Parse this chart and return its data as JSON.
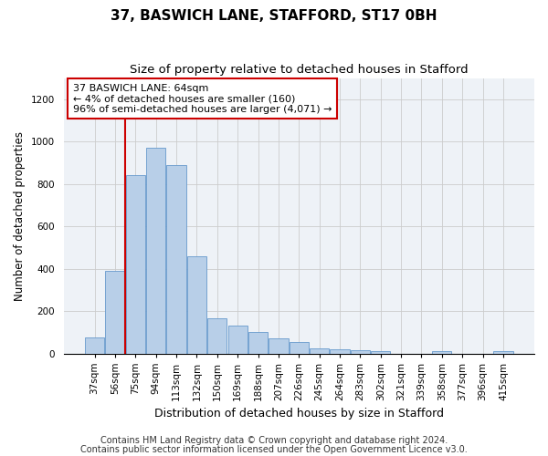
{
  "title": "37, BASWICH LANE, STAFFORD, ST17 0BH",
  "subtitle": "Size of property relative to detached houses in Stafford",
  "xlabel": "Distribution of detached houses by size in Stafford",
  "ylabel": "Number of detached properties",
  "categories": [
    "37sqm",
    "56sqm",
    "75sqm",
    "94sqm",
    "113sqm",
    "132sqm",
    "150sqm",
    "169sqm",
    "188sqm",
    "207sqm",
    "226sqm",
    "245sqm",
    "264sqm",
    "283sqm",
    "302sqm",
    "321sqm",
    "339sqm",
    "358sqm",
    "377sqm",
    "396sqm",
    "415sqm"
  ],
  "values": [
    75,
    390,
    840,
    970,
    890,
    460,
    165,
    130,
    100,
    70,
    55,
    25,
    20,
    15,
    10,
    0,
    0,
    10,
    0,
    0,
    10
  ],
  "bar_color": "#b8cfe8",
  "bar_edge_color": "#6699cc",
  "vline_x_index": 1.5,
  "vline_color": "#cc0000",
  "annotation_text": "37 BASWICH LANE: 64sqm\n← 4% of detached houses are smaller (160)\n96% of semi-detached houses are larger (4,071) →",
  "annotation_box_color": "#ffffff",
  "annotation_box_edge": "#cc0000",
  "footnote1": "Contains HM Land Registry data © Crown copyright and database right 2024.",
  "footnote2": "Contains public sector information licensed under the Open Government Licence v3.0.",
  "ylim": [
    0,
    1300
  ],
  "yticks": [
    0,
    200,
    400,
    600,
    800,
    1000,
    1200
  ],
  "title_fontsize": 11,
  "subtitle_fontsize": 9.5,
  "xlabel_fontsize": 9,
  "ylabel_fontsize": 8.5,
  "tick_fontsize": 7.5,
  "annotation_fontsize": 8,
  "footnote_fontsize": 7,
  "background_color": "#eef2f7"
}
